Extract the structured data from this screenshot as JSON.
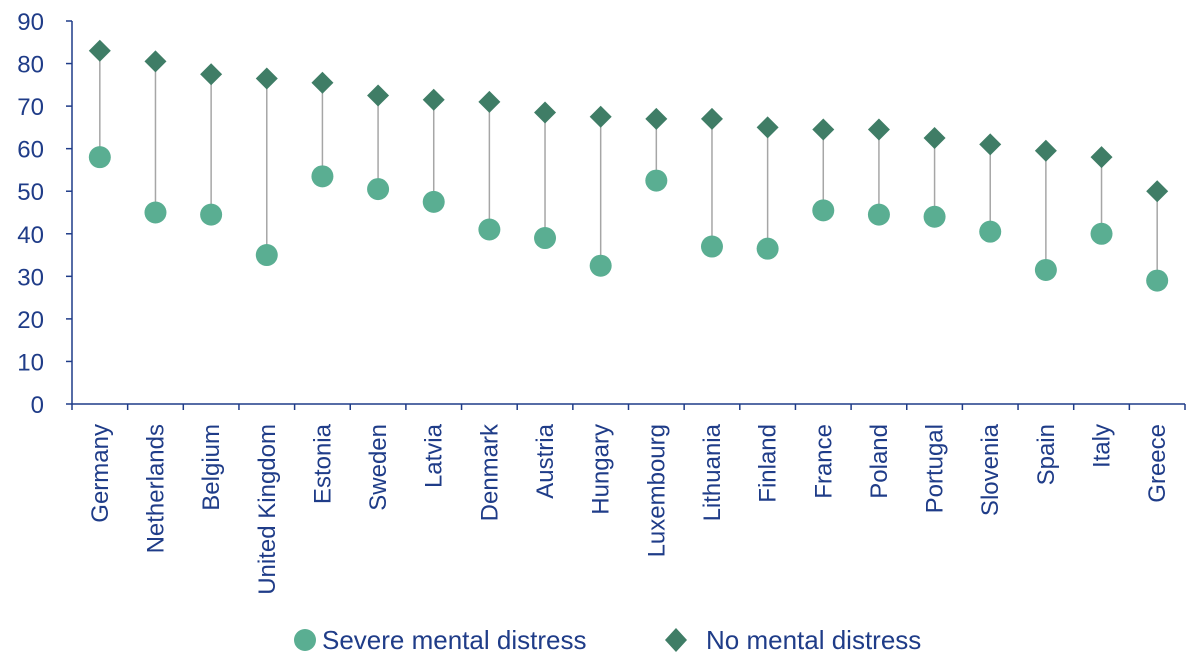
{
  "chart_data": {
    "type": "scatter",
    "title": "",
    "xlabel": "",
    "ylabel": "",
    "ylim": [
      0,
      90
    ],
    "yticks": [
      0,
      10,
      20,
      30,
      40,
      50,
      60,
      70,
      80,
      90
    ],
    "grid": false,
    "legend_position": "bottom",
    "categories": [
      "Germany",
      "Netherlands",
      "Belgium",
      "United Kingdom",
      "Estonia",
      "Sweden",
      "Latvia",
      "Denmark",
      "Austria",
      "Hungary",
      "Luxembourg",
      "Lithuania",
      "Finland",
      "France",
      "Poland",
      "Portugal",
      "Slovenia",
      "Spain",
      "Italy",
      "Greece"
    ],
    "series": [
      {
        "name": "Severe mental distress",
        "marker": "circle",
        "color": "#5aae92",
        "values": [
          58,
          45,
          44.5,
          35,
          53.5,
          50.5,
          47.5,
          41,
          39,
          32.5,
          52.5,
          37,
          36.5,
          45.5,
          44.5,
          44,
          40.5,
          31.5,
          40,
          29
        ]
      },
      {
        "name": "No mental distress",
        "marker": "diamond",
        "color": "#3f7d66",
        "values": [
          83,
          80.5,
          77.5,
          76.5,
          75.5,
          72.5,
          71.5,
          71,
          68.5,
          67.5,
          67,
          67,
          65,
          64.5,
          64.5,
          62.5,
          61,
          59.5,
          58,
          50
        ]
      }
    ],
    "colors": {
      "axis": "#1f3c88",
      "connector": "#a6a6a6",
      "text": "#1f3c88"
    }
  }
}
